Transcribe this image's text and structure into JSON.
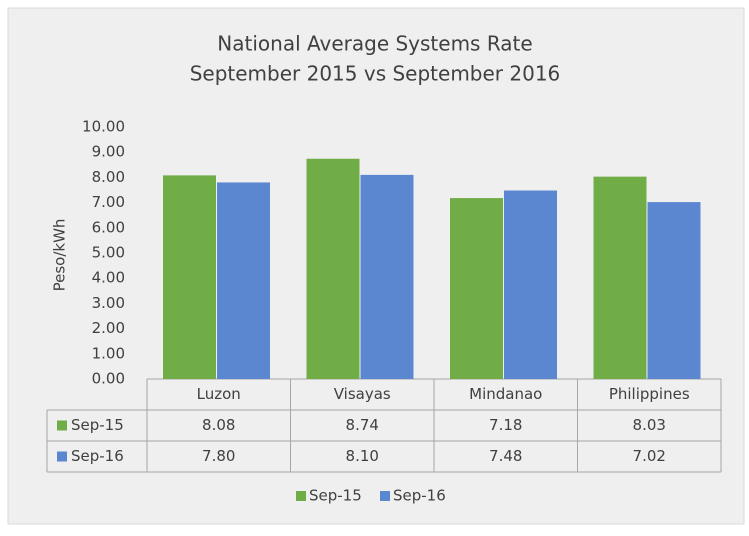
{
  "chart_data": {
    "type": "bar",
    "title": "National Average Systems Rate",
    "subtitle": "September 2015 vs September 2016",
    "y_label": "Peso/kWh",
    "categories": [
      "Luzon",
      "Visayas",
      "Mindanao",
      "Philippines"
    ],
    "series": [
      {
        "name": "Sep-15",
        "color": "#70ad47",
        "values": [
          8.08,
          8.74,
          7.18,
          8.03
        ],
        "value_labels": [
          "8.08",
          "8.74",
          "7.18",
          "8.03"
        ]
      },
      {
        "name": "Sep-16",
        "color": "#5b87d0",
        "values": [
          7.8,
          8.1,
          7.48,
          7.02
        ],
        "value_labels": [
          "7.80",
          "8.10",
          "7.48",
          "7.02"
        ]
      }
    ],
    "ylim": [
      0,
      10
    ],
    "yticks": [
      {
        "value": 0,
        "label": "0.00"
      },
      {
        "value": 1,
        "label": "1.00"
      },
      {
        "value": 2,
        "label": "2.00"
      },
      {
        "value": 3,
        "label": "3.00"
      },
      {
        "value": 4,
        "label": "4.00"
      },
      {
        "value": 5,
        "label": "5.00"
      },
      {
        "value": 6,
        "label": "6.00"
      },
      {
        "value": 7,
        "label": "7.00"
      },
      {
        "value": 8,
        "label": "8.00"
      },
      {
        "value": 9,
        "label": "9.00"
      },
      {
        "value": 10,
        "label": "10.00"
      }
    ],
    "grid": false,
    "legend": "bottom"
  }
}
